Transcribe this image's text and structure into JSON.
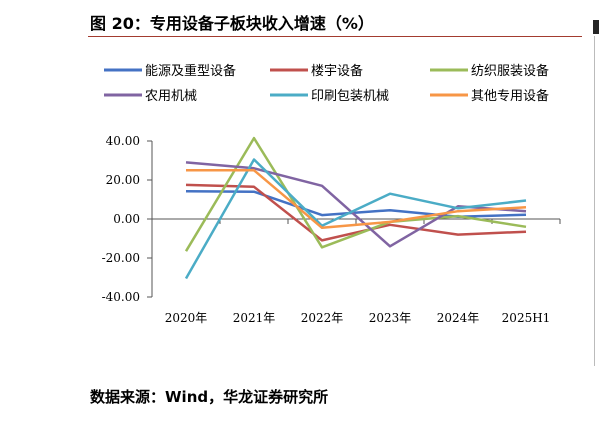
{
  "header": {
    "title": "图 20：专用设备子板块收入增速（%）"
  },
  "footer": {
    "source": "数据来源：Wind，华龙证券研究所"
  },
  "chart_data": {
    "type": "line",
    "title": "图 20：专用设备子板块收入增速（%）",
    "xlabel": "",
    "ylabel": "",
    "categories": [
      "2020年",
      "2021年",
      "2022年",
      "2023年",
      "2024年",
      "2025H1"
    ],
    "ylim": [
      -40,
      40
    ],
    "yticks": [
      40,
      20,
      0,
      -20,
      -40
    ],
    "ytick_labels": [
      "40.00",
      "20.00",
      "0.00",
      "-20.00",
      "-40.00"
    ],
    "grid": false,
    "legend_position": "top",
    "series": [
      {
        "name": "能源及重型设备",
        "color": "#4472c4",
        "values": [
          14.2,
          14.0,
          2.0,
          4.5,
          1.2,
          2.2
        ]
      },
      {
        "name": "楼宇设备",
        "color": "#c0504d",
        "values": [
          17.5,
          16.5,
          -11.0,
          -3.0,
          -8.0,
          -6.5
        ]
      },
      {
        "name": "纺织服装设备",
        "color": "#9bbb59",
        "values": [
          -16.5,
          41.5,
          -14.5,
          -1.5,
          1.5,
          -4.0
        ]
      },
      {
        "name": "农用机械",
        "color": "#8064a2",
        "values": [
          29.0,
          26.0,
          17.0,
          -14.0,
          6.5,
          4.0
        ]
      },
      {
        "name": "印刷包装机械",
        "color": "#4bacc6",
        "values": [
          -30.5,
          30.5,
          -3.5,
          13.0,
          5.5,
          9.5
        ]
      },
      {
        "name": "其他专用设备",
        "color": "#f79646",
        "values": [
          25.0,
          25.0,
          -4.5,
          -1.5,
          4.0,
          6.0
        ]
      }
    ]
  }
}
